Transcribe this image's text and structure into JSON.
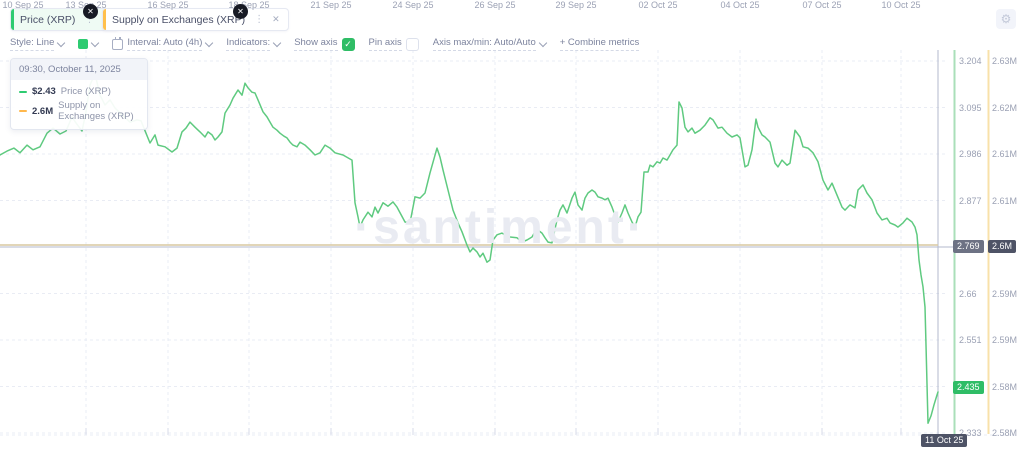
{
  "tabs": [
    {
      "label": "Price (XRP)",
      "accent_color": "#2ecb71"
    },
    {
      "label": "Supply on Exchanges (XRP)",
      "accent_color": "#ffc04c"
    }
  ],
  "toolbar": {
    "style_label": "Style: Line",
    "series_swatch_color": "#2ecb71",
    "interval_label": "Interval: Auto (4h)",
    "indicators_label": "Indicators:",
    "show_axis_label": "Show axis",
    "show_axis_checked": true,
    "pin_axis_label": "Pin axis",
    "pin_axis_checked": false,
    "axis_maxmin_label": "Axis max/min: Auto/Auto",
    "combine_metrics_label": "+ Combine metrics"
  },
  "tooltip": {
    "header": "09:30, October 11, 2025",
    "rows": [
      {
        "value": "$2.43",
        "label": "Price (XRP)",
        "color": "#2ecb71"
      },
      {
        "value": "2.6M",
        "label": "Supply on Exchanges (XRP)",
        "color": "#ffb84d"
      }
    ]
  },
  "watermark": "·santiment·",
  "chart_data": {
    "type": "line",
    "title": "Price (XRP) vs Supply on Exchanges (XRP)",
    "legend": [
      "Price (XRP)",
      "Supply on Exchanges (XRP)"
    ],
    "grid": true,
    "price_axis": {
      "labels": [
        "3.204",
        "3.095",
        "2.986",
        "2.877",
        "2.769",
        "2.66",
        "2.551",
        "2.443",
        "2.333"
      ],
      "top_value": 3.204,
      "bottom_value": 2.333,
      "badge_indices": [
        4,
        7
      ]
    },
    "supply_axis": {
      "labels": [
        "2.63M",
        "2.62M",
        "2.61M",
        "2.61M",
        "2.6M",
        "2.59M",
        "2.59M",
        "2.58M",
        "2.58M"
      ],
      "badge_indices": [
        4
      ]
    },
    "x_axis": {
      "labels": [
        "10 Sep 25",
        "13 Sep 25",
        "16 Sep 25",
        "18 Sep 25",
        "21 Sep 25",
        "24 Sep 25",
        "26 Sep 25",
        "29 Sep 25",
        "02 Oct 25",
        "04 Oct 25",
        "07 Oct 25",
        "10 Oct 25"
      ],
      "residual_label": "25"
    },
    "badges": {
      "price_hover": "2.769",
      "supply_hover": "2.6M",
      "price_last": "2.435",
      "date_hover": "11 Oct 25"
    },
    "supply_series": {
      "label": "2.6M",
      "value_millions": 2.6,
      "flat": true
    },
    "price_series": [
      [
        0,
        2.984
      ],
      [
        7,
        2.993
      ],
      [
        14,
        3.0
      ],
      [
        20,
        2.989
      ],
      [
        27,
        3.007
      ],
      [
        33,
        2.996
      ],
      [
        40,
        3.003
      ],
      [
        47,
        3.035
      ],
      [
        53,
        3.047
      ],
      [
        60,
        3.033
      ],
      [
        66,
        3.04
      ],
      [
        72,
        3.073
      ],
      [
        76,
        3.059
      ],
      [
        82,
        3.04
      ],
      [
        86,
        3.085
      ],
      [
        90,
        3.148
      ],
      [
        95,
        3.174
      ],
      [
        100,
        3.124
      ],
      [
        105,
        3.101
      ],
      [
        110,
        3.113
      ],
      [
        115,
        3.094
      ],
      [
        122,
        3.078
      ],
      [
        130,
        3.061
      ],
      [
        137,
        3.066
      ],
      [
        141,
        3.064
      ],
      [
        146,
        3.035
      ],
      [
        150,
        3.012
      ],
      [
        155,
        3.031
      ],
      [
        158,
        3.007
      ],
      [
        165,
        3.003
      ],
      [
        172,
        2.991
      ],
      [
        177,
        3.0
      ],
      [
        182,
        3.038
      ],
      [
        186,
        3.047
      ],
      [
        190,
        3.061
      ],
      [
        195,
        3.049
      ],
      [
        200,
        3.038
      ],
      [
        205,
        3.026
      ],
      [
        208,
        3.038
      ],
      [
        212,
        3.031
      ],
      [
        215,
        3.019
      ],
      [
        218,
        3.026
      ],
      [
        222,
        3.038
      ],
      [
        225,
        3.082
      ],
      [
        230,
        3.101
      ],
      [
        233,
        3.117
      ],
      [
        238,
        3.136
      ],
      [
        242,
        3.124
      ],
      [
        245,
        3.152
      ],
      [
        248,
        3.141
      ],
      [
        252,
        3.131
      ],
      [
        255,
        3.129
      ],
      [
        258,
        3.113
      ],
      [
        263,
        3.085
      ],
      [
        267,
        3.073
      ],
      [
        270,
        3.061
      ],
      [
        273,
        3.049
      ],
      [
        277,
        3.042
      ],
      [
        280,
        3.035
      ],
      [
        284,
        3.028
      ],
      [
        287,
        3.024
      ],
      [
        290,
        3.014
      ],
      [
        293,
        3.007
      ],
      [
        297,
        3.003
      ],
      [
        300,
        3.014
      ],
      [
        305,
        3.007
      ],
      [
        310,
        2.996
      ],
      [
        315,
        2.984
      ],
      [
        320,
        2.989
      ],
      [
        325,
        3.007
      ],
      [
        330,
        3.0
      ],
      [
        335,
        2.989
      ],
      [
        343,
        2.984
      ],
      [
        352,
        2.972
      ],
      [
        355,
        2.872
      ],
      [
        358,
        2.839
      ],
      [
        360,
        2.815
      ],
      [
        363,
        2.832
      ],
      [
        368,
        2.85
      ],
      [
        372,
        2.839
      ],
      [
        375,
        2.862
      ],
      [
        378,
        2.848
      ],
      [
        383,
        2.872
      ],
      [
        388,
        2.864
      ],
      [
        393,
        2.874
      ],
      [
        397,
        2.862
      ],
      [
        405,
        2.827
      ],
      [
        410,
        2.825
      ],
      [
        415,
        2.886
      ],
      [
        420,
        2.883
      ],
      [
        425,
        2.895
      ],
      [
        430,
        2.942
      ],
      [
        437,
        3.0
      ],
      [
        440,
        2.979
      ],
      [
        443,
        2.949
      ],
      [
        448,
        2.902
      ],
      [
        453,
        2.855
      ],
      [
        458,
        2.825
      ],
      [
        462,
        2.804
      ],
      [
        467,
        2.773
      ],
      [
        470,
        2.757
      ],
      [
        473,
        2.766
      ],
      [
        477,
        2.757
      ],
      [
        480,
        2.745
      ],
      [
        483,
        2.754
      ],
      [
        487,
        2.733
      ],
      [
        490,
        2.738
      ],
      [
        493,
        2.785
      ],
      [
        497,
        2.797
      ],
      [
        502,
        2.801
      ],
      [
        505,
        2.797
      ],
      [
        510,
        2.792
      ],
      [
        517,
        2.79
      ],
      [
        522,
        2.78
      ],
      [
        527,
        2.785
      ],
      [
        532,
        2.792
      ],
      [
        535,
        2.804
      ],
      [
        538,
        2.808
      ],
      [
        542,
        2.801
      ],
      [
        545,
        2.79
      ],
      [
        548,
        2.78
      ],
      [
        552,
        2.778
      ],
      [
        557,
        2.832
      ],
      [
        560,
        2.855
      ],
      [
        563,
        2.867
      ],
      [
        567,
        2.848
      ],
      [
        572,
        2.883
      ],
      [
        575,
        2.897
      ],
      [
        578,
        2.867
      ],
      [
        582,
        2.855
      ],
      [
        585,
        2.883
      ],
      [
        588,
        2.895
      ],
      [
        592,
        2.902
      ],
      [
        595,
        2.897
      ],
      [
        598,
        2.886
      ],
      [
        602,
        2.883
      ],
      [
        605,
        2.879
      ],
      [
        608,
        2.883
      ],
      [
        612,
        2.862
      ],
      [
        615,
        2.843
      ],
      [
        618,
        2.827
      ],
      [
        622,
        2.848
      ],
      [
        625,
        2.867
      ],
      [
        628,
        2.848
      ],
      [
        632,
        2.827
      ],
      [
        635,
        2.815
      ],
      [
        638,
        2.839
      ],
      [
        641,
        2.85
      ],
      [
        644,
        2.944
      ],
      [
        648,
        2.944
      ],
      [
        650,
        2.96
      ],
      [
        653,
        2.956
      ],
      [
        657,
        2.968
      ],
      [
        660,
        2.965
      ],
      [
        663,
        2.977
      ],
      [
        667,
        2.972
      ],
      [
        670,
        2.984
      ],
      [
        673,
        2.996
      ],
      [
        677,
        3.007
      ],
      [
        679,
        3.108
      ],
      [
        682,
        3.094
      ],
      [
        685,
        3.049
      ],
      [
        688,
        3.038
      ],
      [
        692,
        3.047
      ],
      [
        695,
        3.035
      ],
      [
        700,
        3.042
      ],
      [
        705,
        3.054
      ],
      [
        710,
        3.071
      ],
      [
        713,
        3.066
      ],
      [
        718,
        3.047
      ],
      [
        722,
        3.049
      ],
      [
        727,
        3.035
      ],
      [
        732,
        3.026
      ],
      [
        737,
        3.031
      ],
      [
        740,
        3.024
      ],
      [
        745,
        2.956
      ],
      [
        748,
        2.96
      ],
      [
        752,
        2.996
      ],
      [
        756,
        3.068
      ],
      [
        758,
        3.049
      ],
      [
        762,
        3.031
      ],
      [
        765,
        3.026
      ],
      [
        770,
        3.014
      ],
      [
        775,
        2.965
      ],
      [
        778,
        2.956
      ],
      [
        782,
        2.972
      ],
      [
        787,
        2.96
      ],
      [
        790,
        2.965
      ],
      [
        795,
        3.042
      ],
      [
        800,
        3.026
      ],
      [
        803,
        3.003
      ],
      [
        808,
        3.0
      ],
      [
        813,
        2.989
      ],
      [
        818,
        2.968
      ],
      [
        823,
        2.925
      ],
      [
        828,
        2.902
      ],
      [
        832,
        2.918
      ],
      [
        837,
        2.89
      ],
      [
        842,
        2.862
      ],
      [
        845,
        2.855
      ],
      [
        850,
        2.867
      ],
      [
        855,
        2.86
      ],
      [
        858,
        2.902
      ],
      [
        863,
        2.914
      ],
      [
        867,
        2.895
      ],
      [
        872,
        2.879
      ],
      [
        877,
        2.848
      ],
      [
        882,
        2.832
      ],
      [
        887,
        2.836
      ],
      [
        890,
        2.825
      ],
      [
        895,
        2.82
      ],
      [
        898,
        2.815
      ],
      [
        903,
        2.825
      ],
      [
        907,
        2.836
      ],
      [
        912,
        2.827
      ],
      [
        915,
        2.815
      ],
      [
        917,
        2.797
      ],
      [
        919,
        2.738
      ],
      [
        921,
        2.703
      ],
      [
        923,
        2.675
      ],
      [
        925,
        2.628
      ],
      [
        926,
        2.539
      ],
      [
        928,
        2.356
      ],
      [
        931,
        2.373
      ],
      [
        934,
        2.399
      ],
      [
        937,
        2.422
      ],
      [
        938,
        2.429
      ]
    ],
    "colors": {
      "price_line": "#5fca80",
      "supply_line": "#d9c9a0",
      "crosshair": "#b3bace",
      "grid": "#e9ecf4",
      "price_axis_line": "#aadfb9",
      "supply_axis_line": "#f8e1a9"
    }
  }
}
